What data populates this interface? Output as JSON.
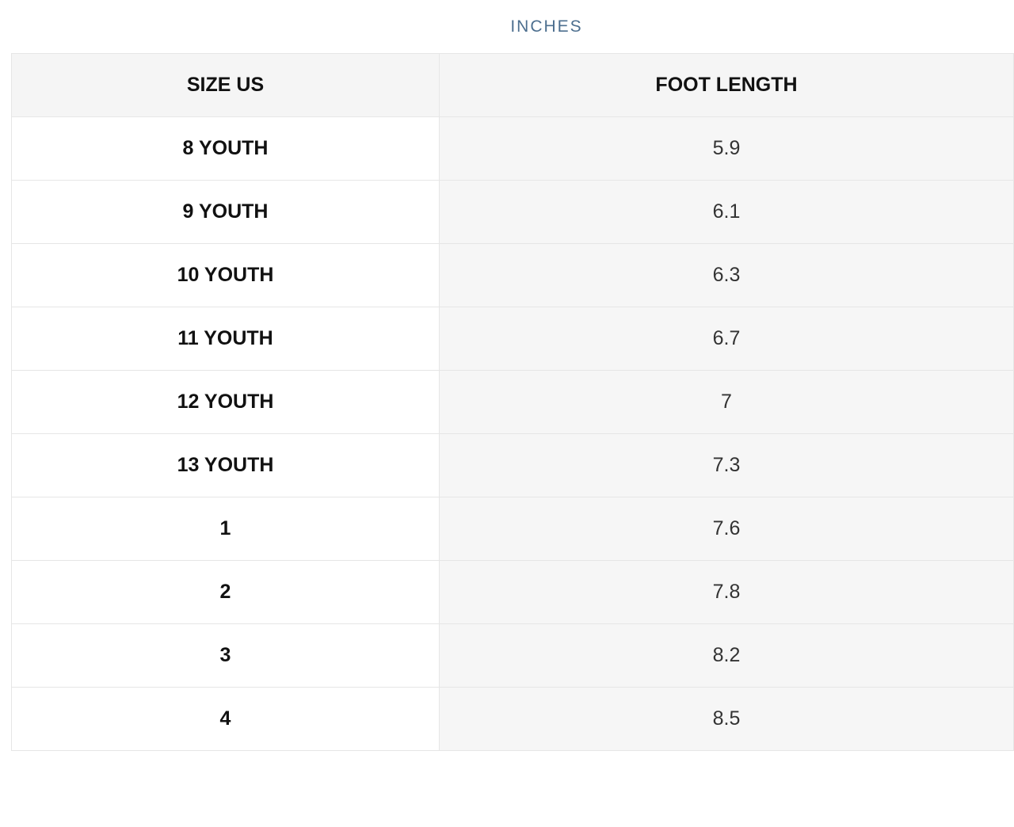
{
  "title": "INCHES",
  "table": {
    "header": [
      "SIZE US",
      "FOOT LENGTH"
    ],
    "rows": [
      [
        "8 YOUTH",
        "5.9"
      ],
      [
        "9 YOUTH",
        "6.1"
      ],
      [
        "10 YOUTH",
        "6.3"
      ],
      [
        "11 YOUTH",
        "6.7"
      ],
      [
        "12 YOUTH",
        "7"
      ],
      [
        "13 YOUTH",
        "7.3"
      ],
      [
        "1",
        "7.6"
      ],
      [
        "2",
        "7.8"
      ],
      [
        "3",
        "8.2"
      ],
      [
        "4",
        "8.5"
      ]
    ]
  }
}
